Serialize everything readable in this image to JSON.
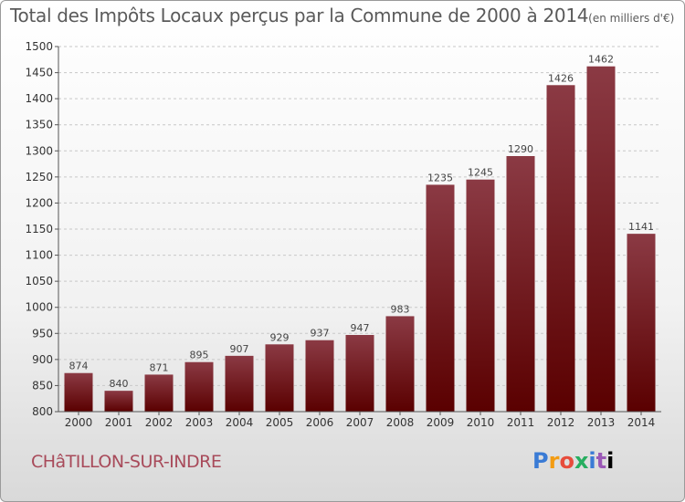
{
  "chart_data": {
    "type": "bar",
    "title": "Total des Impôts Locaux perçus par la Commune de 2000 à 2014",
    "unit": "(en milliers d'€)",
    "xlabel": "",
    "ylabel": "",
    "categories": [
      "2000",
      "2001",
      "2002",
      "2003",
      "2004",
      "2005",
      "2006",
      "2007",
      "2008",
      "2009",
      "2010",
      "2011",
      "2012",
      "2013",
      "2014"
    ],
    "values": [
      874,
      840,
      871,
      895,
      907,
      929,
      937,
      947,
      983,
      1235,
      1245,
      1290,
      1426,
      1462,
      1141
    ],
    "ylim": [
      800,
      1500
    ],
    "yticks": [
      800,
      850,
      900,
      950,
      1000,
      1050,
      1100,
      1150,
      1200,
      1250,
      1300,
      1350,
      1400,
      1450,
      1500
    ],
    "grid": "horizontal-dashed",
    "bar_color_top": "#8b3a44",
    "bar_color_bottom": "#5a0000"
  },
  "footer": {
    "commune": "CHâTILLON-SUR-INDRE",
    "brand_letters": [
      "P",
      "r",
      "o",
      "x",
      "i",
      "t",
      "i"
    ]
  }
}
